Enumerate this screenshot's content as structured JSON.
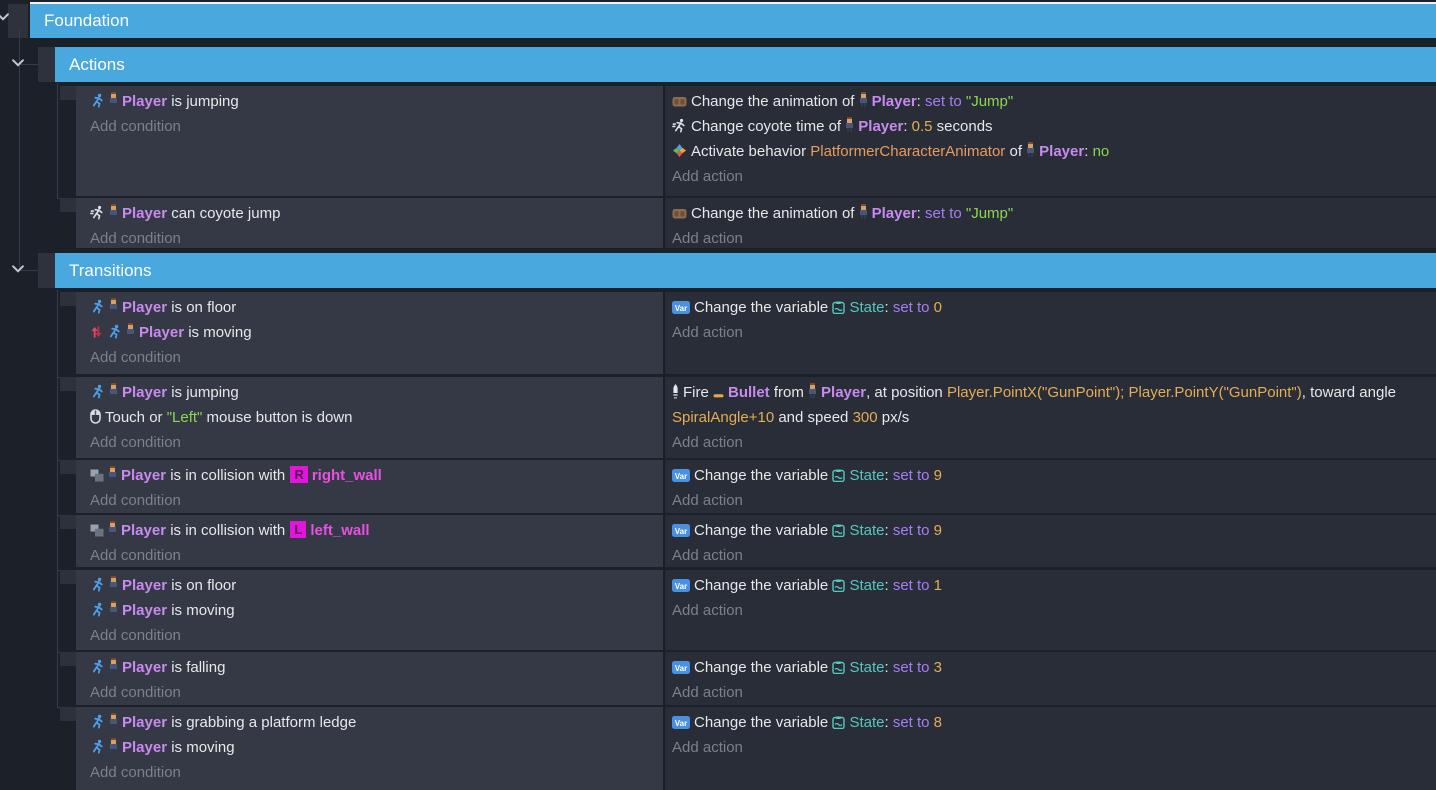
{
  "app": {
    "view": "gdevelop-event-sheet"
  },
  "colors": {
    "group_bar": "#49a9de",
    "background": "#1c2129",
    "condition_panel": "#343945",
    "action_panel": "#282d37",
    "object_text": "#c98af0",
    "string_text": "#8cd750",
    "number_text": "#e5ad55",
    "behavior_text": "#e99b5e",
    "variable_text": "#58c6bf",
    "operator_text": "#a77df2",
    "wall_object_text": "#e750e2"
  },
  "groups": [
    {
      "label": "Foundation"
    },
    {
      "label": "Actions"
    },
    {
      "label": "Transitions"
    }
  ],
  "labels": {
    "add_condition": "Add condition",
    "add_action": "Add action"
  },
  "events": [
    {
      "conditions": [
        [
          {
            "icon": "platformer-runner-icon"
          },
          {
            "icon": "player-sprite-icon"
          },
          {
            "text": "Player",
            "style": "object"
          },
          {
            "text": " is jumping",
            "style": "plain"
          }
        ]
      ],
      "actions": [
        [
          {
            "icon": "animation-icon"
          },
          {
            "text": "Change the animation of ",
            "style": "plain"
          },
          {
            "icon": "player-sprite-icon"
          },
          {
            "text": "Player",
            "style": "object"
          },
          {
            "text": ": ",
            "style": "plain"
          },
          {
            "text": "set to",
            "style": "setto"
          },
          {
            "text": " ",
            "style": "plain"
          },
          {
            "text": "\"Jump\"",
            "style": "string"
          }
        ],
        [
          {
            "icon": "coyote-jump-icon"
          },
          {
            "text": "Change coyote time of ",
            "style": "plain"
          },
          {
            "icon": "player-sprite-icon"
          },
          {
            "text": "Player",
            "style": "object"
          },
          {
            "text": ": ",
            "style": "plain"
          },
          {
            "text": "0.5",
            "style": "number"
          },
          {
            "text": " seconds",
            "style": "plain"
          }
        ],
        [
          {
            "icon": "behavior-icon"
          },
          {
            "text": "Activate behavior ",
            "style": "plain"
          },
          {
            "text": "PlatformerCharacterAnimator",
            "style": "behavior"
          },
          {
            "text": " of ",
            "style": "plain"
          },
          {
            "icon": "player-sprite-icon"
          },
          {
            "text": "Player",
            "style": "object"
          },
          {
            "text": ": ",
            "style": "plain"
          },
          {
            "text": "no",
            "style": "string"
          }
        ]
      ]
    },
    {
      "conditions": [
        [
          {
            "icon": "coyote-jump-icon"
          },
          {
            "icon": "player-sprite-icon"
          },
          {
            "text": "Player",
            "style": "object"
          },
          {
            "text": " can coyote jump",
            "style": "plain"
          }
        ]
      ],
      "actions": [
        [
          {
            "icon": "animation-icon"
          },
          {
            "text": "Change the animation of ",
            "style": "plain"
          },
          {
            "icon": "player-sprite-icon"
          },
          {
            "text": "Player",
            "style": "object"
          },
          {
            "text": ": ",
            "style": "plain"
          },
          {
            "text": "set to",
            "style": "setto"
          },
          {
            "text": " ",
            "style": "plain"
          },
          {
            "text": "\"Jump\"",
            "style": "string"
          }
        ]
      ]
    },
    {
      "conditions": [
        [
          {
            "icon": "platformer-runner-icon"
          },
          {
            "icon": "player-sprite-icon"
          },
          {
            "text": "Player",
            "style": "object"
          },
          {
            "text": " is on floor",
            "style": "plain"
          }
        ],
        [
          {
            "icon": "invert-condition-icon"
          },
          {
            "icon": "platformer-runner-icon"
          },
          {
            "icon": "player-sprite-icon"
          },
          {
            "text": "Player",
            "style": "object"
          },
          {
            "text": " is moving",
            "style": "plain"
          }
        ]
      ],
      "actions": [
        [
          {
            "icon": "variable-icon"
          },
          {
            "text": "Change the variable ",
            "style": "plain"
          },
          {
            "icon": "scene-variable-icon"
          },
          {
            "text": "State",
            "style": "variable"
          },
          {
            "text": ": ",
            "style": "plain"
          },
          {
            "text": "set to",
            "style": "setto"
          },
          {
            "text": " ",
            "style": "plain"
          },
          {
            "text": "0",
            "style": "number"
          }
        ]
      ]
    },
    {
      "conditions": [
        [
          {
            "icon": "platformer-runner-icon"
          },
          {
            "icon": "player-sprite-icon"
          },
          {
            "text": "Player",
            "style": "object"
          },
          {
            "text": " is jumping",
            "style": "plain"
          }
        ],
        [
          {
            "icon": "mouse-touch-icon"
          },
          {
            "text": "Touch or ",
            "style": "plain"
          },
          {
            "text": "\"Left\"",
            "style": "string"
          },
          {
            "text": " mouse button is down",
            "style": "plain"
          }
        ]
      ],
      "actions": [
        [
          {
            "icon": "fire-bullet-icon"
          },
          {
            "text": "Fire ",
            "style": "plain"
          },
          {
            "icon": "bullet-object-icon"
          },
          {
            "text": "Bullet",
            "style": "object"
          },
          {
            "text": " from ",
            "style": "plain"
          },
          {
            "icon": "player-sprite-icon"
          },
          {
            "text": "Player",
            "style": "object"
          },
          {
            "text": ", at position ",
            "style": "plain"
          },
          {
            "text": "Player.PointX(\"GunPoint\"); Player.PointY(\"GunPoint\")",
            "style": "expr"
          },
          {
            "text": ", toward angle ",
            "style": "plain"
          },
          {
            "text": "SpiralAngle+10",
            "style": "expr"
          },
          {
            "text": " and speed ",
            "style": "plain"
          },
          {
            "text": "300",
            "style": "number"
          },
          {
            "text": " px/s",
            "style": "plain"
          }
        ]
      ]
    },
    {
      "conditions": [
        [
          {
            "icon": "collision-icon"
          },
          {
            "icon": "player-sprite-icon"
          },
          {
            "text": "Player",
            "style": "object"
          },
          {
            "text": " is in collision with ",
            "style": "plain"
          },
          {
            "badge": "R"
          },
          {
            "text": "right_wall",
            "style": "wall"
          }
        ]
      ],
      "actions": [
        [
          {
            "icon": "variable-icon"
          },
          {
            "text": "Change the variable ",
            "style": "plain"
          },
          {
            "icon": "scene-variable-icon"
          },
          {
            "text": "State",
            "style": "variable"
          },
          {
            "text": ": ",
            "style": "plain"
          },
          {
            "text": "set to",
            "style": "setto"
          },
          {
            "text": " ",
            "style": "plain"
          },
          {
            "text": "9",
            "style": "number"
          }
        ]
      ]
    },
    {
      "conditions": [
        [
          {
            "icon": "collision-icon"
          },
          {
            "icon": "player-sprite-icon"
          },
          {
            "text": "Player",
            "style": "object"
          },
          {
            "text": " is in collision with ",
            "style": "plain"
          },
          {
            "badge": "L"
          },
          {
            "text": "left_wall",
            "style": "wall"
          }
        ]
      ],
      "actions": [
        [
          {
            "icon": "variable-icon"
          },
          {
            "text": "Change the variable ",
            "style": "plain"
          },
          {
            "icon": "scene-variable-icon"
          },
          {
            "text": "State",
            "style": "variable"
          },
          {
            "text": ": ",
            "style": "plain"
          },
          {
            "text": "set to",
            "style": "setto"
          },
          {
            "text": " ",
            "style": "plain"
          },
          {
            "text": "9",
            "style": "number"
          }
        ]
      ]
    },
    {
      "conditions": [
        [
          {
            "icon": "platformer-runner-icon"
          },
          {
            "icon": "player-sprite-icon"
          },
          {
            "text": "Player",
            "style": "object"
          },
          {
            "text": " is on floor",
            "style": "plain"
          }
        ],
        [
          {
            "icon": "platformer-runner-icon"
          },
          {
            "icon": "player-sprite-icon"
          },
          {
            "text": "Player",
            "style": "object"
          },
          {
            "text": " is moving",
            "style": "plain"
          }
        ]
      ],
      "actions": [
        [
          {
            "icon": "variable-icon"
          },
          {
            "text": "Change the variable ",
            "style": "plain"
          },
          {
            "icon": "scene-variable-icon"
          },
          {
            "text": "State",
            "style": "variable"
          },
          {
            "text": ": ",
            "style": "plain"
          },
          {
            "text": "set to",
            "style": "setto"
          },
          {
            "text": " ",
            "style": "plain"
          },
          {
            "text": "1",
            "style": "number"
          }
        ]
      ]
    },
    {
      "conditions": [
        [
          {
            "icon": "platformer-runner-icon"
          },
          {
            "icon": "player-sprite-icon"
          },
          {
            "text": "Player",
            "style": "object"
          },
          {
            "text": " is falling",
            "style": "plain"
          }
        ]
      ],
      "actions": [
        [
          {
            "icon": "variable-icon"
          },
          {
            "text": "Change the variable ",
            "style": "plain"
          },
          {
            "icon": "scene-variable-icon"
          },
          {
            "text": "State",
            "style": "variable"
          },
          {
            "text": ": ",
            "style": "plain"
          },
          {
            "text": "set to",
            "style": "setto"
          },
          {
            "text": " ",
            "style": "plain"
          },
          {
            "text": "3",
            "style": "number"
          }
        ]
      ]
    },
    {
      "conditions": [
        [
          {
            "icon": "platformer-runner-icon"
          },
          {
            "icon": "player-sprite-icon"
          },
          {
            "text": "Player",
            "style": "object"
          },
          {
            "text": " is grabbing a platform ledge",
            "style": "plain"
          }
        ],
        [
          {
            "icon": "platformer-runner-icon"
          },
          {
            "icon": "player-sprite-icon"
          },
          {
            "text": "Player",
            "style": "object"
          },
          {
            "text": " is moving",
            "style": "plain"
          }
        ]
      ],
      "actions": [
        [
          {
            "icon": "variable-icon"
          },
          {
            "text": "Change the variable ",
            "style": "plain"
          },
          {
            "icon": "scene-variable-icon"
          },
          {
            "text": "State",
            "style": "variable"
          },
          {
            "text": ": ",
            "style": "plain"
          },
          {
            "text": "set to",
            "style": "setto"
          },
          {
            "text": " ",
            "style": "plain"
          },
          {
            "text": "8",
            "style": "number"
          }
        ]
      ]
    }
  ]
}
